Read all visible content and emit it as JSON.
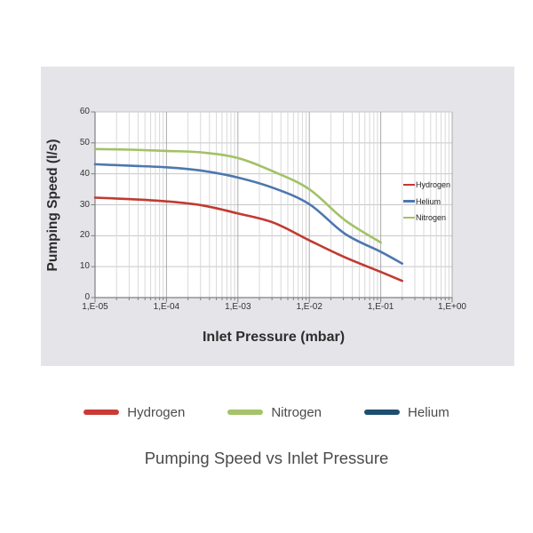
{
  "caption": "Pumping Speed vs Inlet Pressure",
  "chart_data": {
    "type": "line",
    "title": "Pumping Speed vs Inlet Pressure",
    "xlabel": "Inlet Pressure (mbar)",
    "ylabel": "Pumping Speed (l/s)",
    "x_scale": "log",
    "xlim": [
      1e-05,
      1
    ],
    "ylim": [
      0,
      60
    ],
    "x_tick_labels": [
      "1,E-05",
      "1,E-04",
      "1,E-03",
      "1,E-02",
      "1,E-01",
      "1,E+00"
    ],
    "y_tick_labels": [
      "0",
      "10",
      "20",
      "30",
      "40",
      "50",
      "60"
    ],
    "grid": "on",
    "legend_position": "right-inside",
    "legend_items": [
      {
        "name": "Hydrogen",
        "color": "#c13a32"
      },
      {
        "name": "Helium",
        "color": "#4d77b0"
      },
      {
        "name": "Nitrogen",
        "color": "#a3c166"
      }
    ],
    "series": [
      {
        "name": "Hydrogen",
        "color": "#c13a32",
        "points": [
          [
            -5,
            32.3
          ],
          [
            -4.5,
            31.8
          ],
          [
            -4,
            31.1
          ],
          [
            -3.5,
            29.8
          ],
          [
            -3,
            27.2
          ],
          [
            -2.5,
            24.2
          ],
          [
            -2,
            18.5
          ],
          [
            -1.5,
            13.0
          ],
          [
            -1,
            8.3
          ],
          [
            -0.7,
            5.4
          ]
        ]
      },
      {
        "name": "Helium",
        "color": "#4d77b0",
        "points": [
          [
            -5,
            43.1
          ],
          [
            -4.5,
            42.6
          ],
          [
            -4,
            42.1
          ],
          [
            -3.5,
            41.0
          ],
          [
            -3,
            38.8
          ],
          [
            -2.5,
            35.4
          ],
          [
            -2,
            30.2
          ],
          [
            -1.5,
            20.6
          ],
          [
            -1,
            14.8
          ],
          [
            -0.7,
            11.0
          ]
        ]
      },
      {
        "name": "Nitrogen",
        "color": "#a3c166",
        "points": [
          [
            -5,
            48.0
          ],
          [
            -4.5,
            47.8
          ],
          [
            -4,
            47.4
          ],
          [
            -3.5,
            46.9
          ],
          [
            -3,
            45.1
          ],
          [
            -2.5,
            40.7
          ],
          [
            -2,
            35.0
          ],
          [
            -1.5,
            25.0
          ],
          [
            -1,
            17.8
          ]
        ]
      }
    ]
  },
  "bottom_legend": [
    {
      "label": "Hydrogen",
      "color": "#cb3b35"
    },
    {
      "label": "Nitrogen",
      "color": "#a5c36b"
    },
    {
      "label": "Helium",
      "color": "#1d4f70"
    }
  ],
  "colors": {
    "card_background": "#e4e4e9",
    "plot_background": "#ffffff",
    "axis": "#808080",
    "grid_minor": "#d8d8d8",
    "grid_major": "#ababab",
    "grid_horizontal": "#c6c6c6"
  }
}
